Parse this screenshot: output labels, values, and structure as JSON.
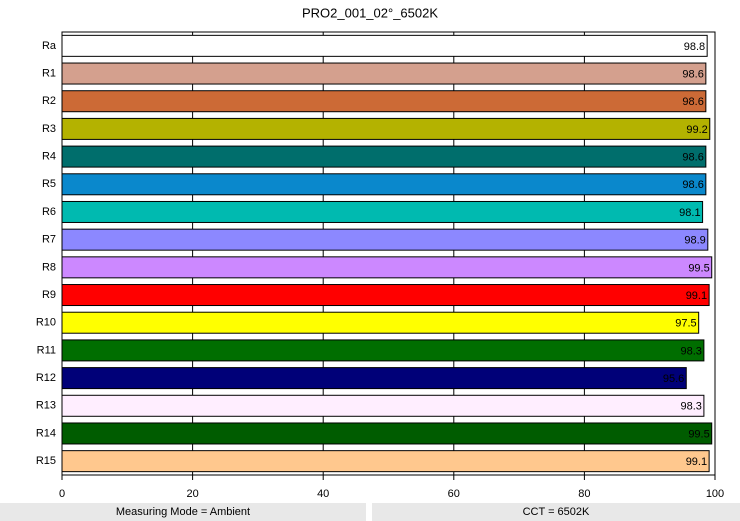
{
  "chart_data": {
    "type": "bar",
    "orientation": "horizontal",
    "title": "PRO2_001_02°_6502K",
    "categories": [
      "Ra",
      "R1",
      "R2",
      "R3",
      "R4",
      "R5",
      "R6",
      "R7",
      "R8",
      "R9",
      "R10",
      "R11",
      "R12",
      "R13",
      "R14",
      "R15"
    ],
    "values": [
      98.8,
      98.6,
      98.6,
      99.2,
      98.6,
      98.6,
      98.1,
      98.9,
      99.5,
      99.1,
      97.5,
      98.3,
      95.6,
      98.3,
      99.5,
      99.1
    ],
    "colors": [
      "#ffffff",
      "#d4a08e",
      "#cc6a36",
      "#b4b200",
      "#006e6c",
      "#0a88cc",
      "#00bab0",
      "#8c88ff",
      "#cc88ff",
      "#ff0000",
      "#ffff00",
      "#006e00",
      "#000078",
      "#ffeeff",
      "#005c00",
      "#ffc88e"
    ],
    "xlim": [
      0,
      100
    ],
    "xticks": [
      0,
      20,
      40,
      60,
      80,
      100
    ],
    "grid": true,
    "footer": [
      "Measuring Mode = Ambient",
      "CCT = 6502K"
    ]
  }
}
